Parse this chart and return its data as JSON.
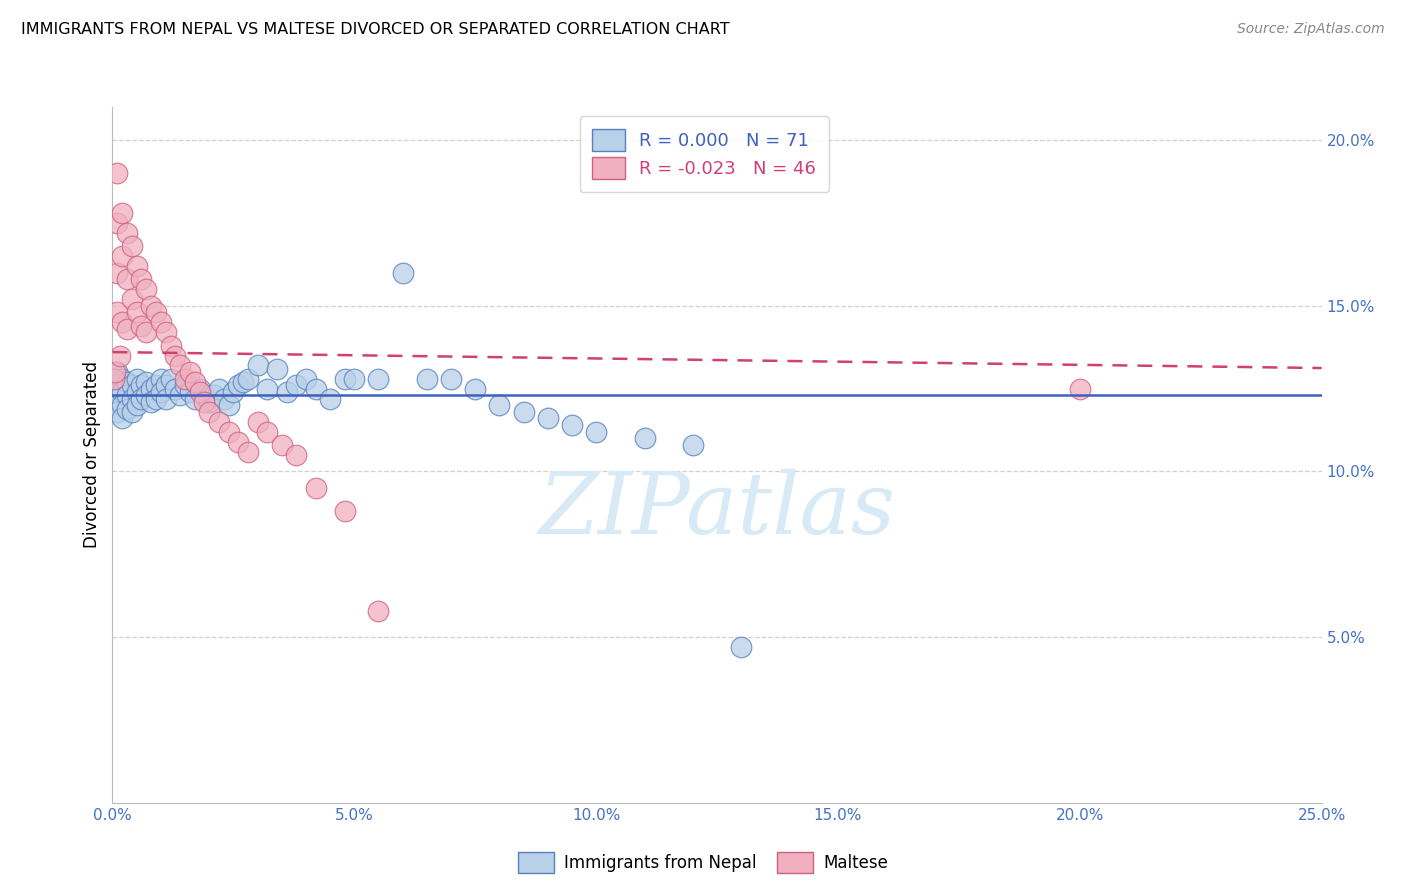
{
  "title": "IMMIGRANTS FROM NEPAL VS MALTESE DIVORCED OR SEPARATED CORRELATION CHART",
  "source": "Source: ZipAtlas.com",
  "ylabel": "Divorced or Separated",
  "xlim": [
    0.0,
    0.25
  ],
  "ylim": [
    0.0,
    0.21
  ],
  "xtick_vals": [
    0.0,
    0.05,
    0.1,
    0.15,
    0.2,
    0.25
  ],
  "ytick_vals_right": [
    0.05,
    0.1,
    0.15,
    0.2
  ],
  "legend_blue_R": "0.000",
  "legend_blue_N": "71",
  "legend_pink_R": "-0.023",
  "legend_pink_N": "46",
  "blue_color": "#b8d0e8",
  "blue_edge": "#5580c0",
  "pink_color": "#f0b0c0",
  "pink_edge": "#d06080",
  "trendline_blue_color": "#4060c0",
  "trendline_pink_color": "#d04070",
  "axis_label_color": "#4472c4",
  "watermark_color": "#d8eaf5",
  "grid_color": "#cccccc",
  "blue_x": [
    0.0005,
    0.001,
    0.001,
    0.001,
    0.001,
    0.0015,
    0.002,
    0.002,
    0.002,
    0.002,
    0.003,
    0.003,
    0.003,
    0.004,
    0.004,
    0.004,
    0.005,
    0.005,
    0.005,
    0.006,
    0.006,
    0.007,
    0.007,
    0.008,
    0.008,
    0.009,
    0.009,
    0.01,
    0.01,
    0.011,
    0.011,
    0.012,
    0.013,
    0.014,
    0.015,
    0.016,
    0.017,
    0.018,
    0.019,
    0.02,
    0.021,
    0.022,
    0.023,
    0.024,
    0.025,
    0.026,
    0.027,
    0.028,
    0.03,
    0.032,
    0.034,
    0.036,
    0.038,
    0.04,
    0.042,
    0.045,
    0.048,
    0.05,
    0.055,
    0.06,
    0.065,
    0.07,
    0.075,
    0.08,
    0.085,
    0.09,
    0.095,
    0.1,
    0.11,
    0.12,
    0.13
  ],
  "blue_y": [
    0.128,
    0.13,
    0.126,
    0.122,
    0.118,
    0.125,
    0.128,
    0.124,
    0.12,
    0.116,
    0.127,
    0.123,
    0.119,
    0.126,
    0.122,
    0.118,
    0.128,
    0.124,
    0.12,
    0.126,
    0.122,
    0.127,
    0.123,
    0.125,
    0.121,
    0.126,
    0.122,
    0.128,
    0.124,
    0.126,
    0.122,
    0.128,
    0.125,
    0.123,
    0.126,
    0.124,
    0.122,
    0.125,
    0.123,
    0.121,
    0.123,
    0.125,
    0.122,
    0.12,
    0.124,
    0.126,
    0.127,
    0.128,
    0.132,
    0.125,
    0.131,
    0.124,
    0.126,
    0.128,
    0.125,
    0.122,
    0.128,
    0.128,
    0.128,
    0.16,
    0.128,
    0.128,
    0.125,
    0.12,
    0.118,
    0.116,
    0.114,
    0.112,
    0.11,
    0.108,
    0.047
  ],
  "pink_x": [
    0.0003,
    0.0005,
    0.001,
    0.001,
    0.001,
    0.001,
    0.0015,
    0.002,
    0.002,
    0.002,
    0.003,
    0.003,
    0.003,
    0.004,
    0.004,
    0.005,
    0.005,
    0.006,
    0.006,
    0.007,
    0.007,
    0.008,
    0.009,
    0.01,
    0.011,
    0.012,
    0.013,
    0.014,
    0.015,
    0.016,
    0.017,
    0.018,
    0.019,
    0.02,
    0.022,
    0.024,
    0.026,
    0.028,
    0.03,
    0.032,
    0.035,
    0.038,
    0.042,
    0.048,
    0.055,
    0.2
  ],
  "pink_y": [
    0.128,
    0.13,
    0.19,
    0.175,
    0.16,
    0.148,
    0.135,
    0.178,
    0.165,
    0.145,
    0.172,
    0.158,
    0.143,
    0.168,
    0.152,
    0.162,
    0.148,
    0.158,
    0.144,
    0.155,
    0.142,
    0.15,
    0.148,
    0.145,
    0.142,
    0.138,
    0.135,
    0.132,
    0.128,
    0.13,
    0.127,
    0.124,
    0.121,
    0.118,
    0.115,
    0.112,
    0.109,
    0.106,
    0.115,
    0.112,
    0.108,
    0.105,
    0.095,
    0.088,
    0.058,
    0.125
  ],
  "trendline_blue_y_start": 0.125,
  "trendline_blue_y_end": 0.125,
  "trendline_pink_y_start": 0.13,
  "trendline_pink_y_end": 0.124
}
